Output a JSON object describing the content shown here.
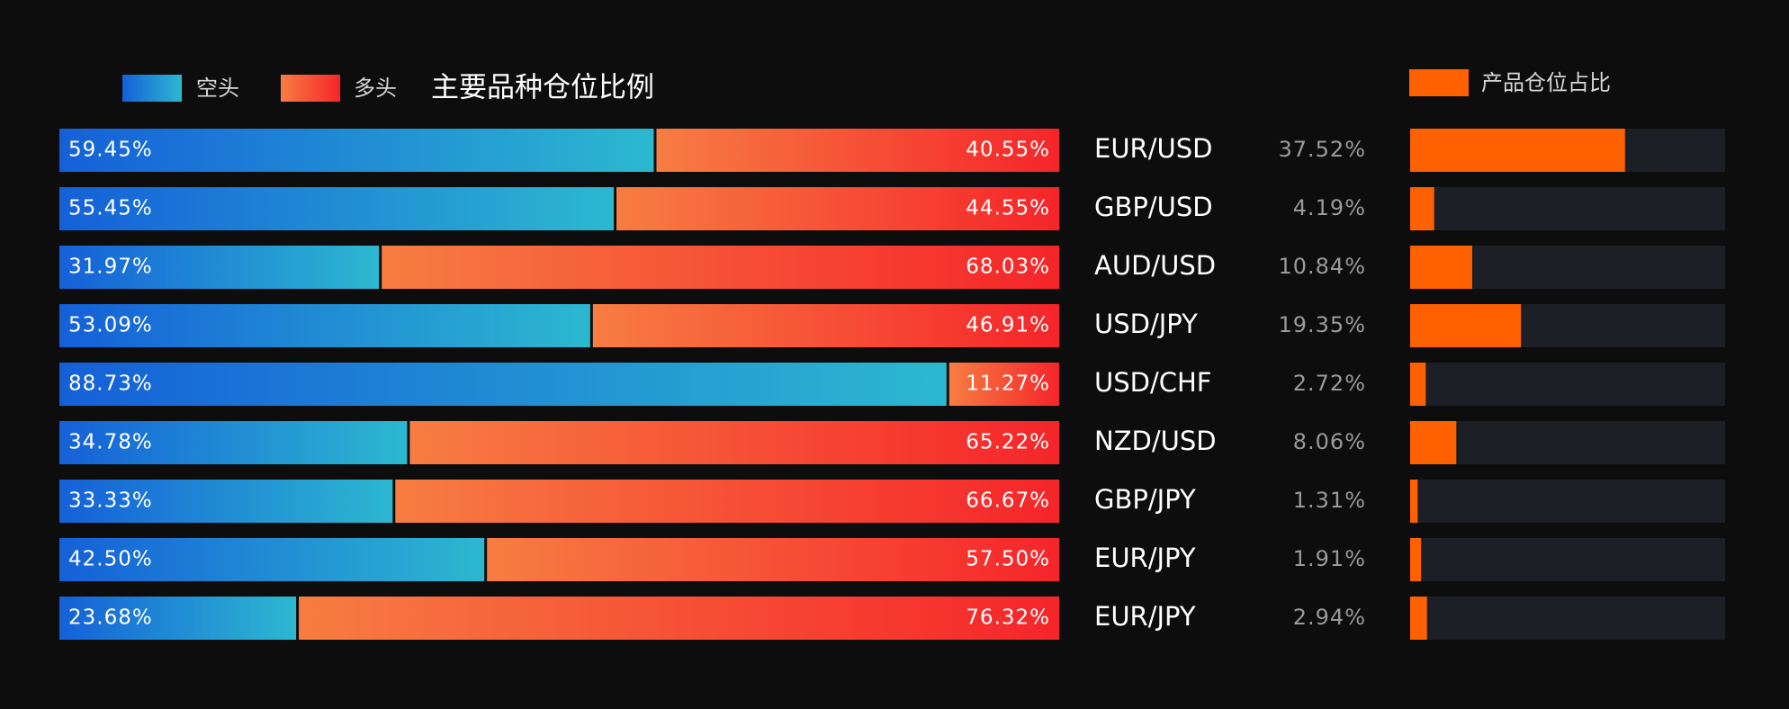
{
  "chart_data": [
    {
      "type": "stacked-bar",
      "orientation": "horizontal",
      "title": "主要品种仓位比例",
      "categories": [
        "EUR/USD",
        "GBP/USD",
        "AUD/USD",
        "USD/JPY",
        "USD/CHF",
        "NZD/USD",
        "GBP/JPY",
        "EUR/JPY",
        "EUR/JPY"
      ],
      "xlim": [
        0,
        100
      ],
      "series": [
        {
          "name": "空头",
          "color": "#1560d8",
          "gradient": [
            "#1560d8",
            "#2cb8d0"
          ],
          "values": [
            59.45,
            55.45,
            31.97,
            53.09,
            88.73,
            34.78,
            33.33,
            42.5,
            23.68
          ],
          "value_labels": [
            "59.45%",
            "55.45%",
            "31.97%",
            "53.09%",
            "88.73%",
            "34.78%",
            "33.33%",
            "42.50%",
            "23.68%"
          ]
        },
        {
          "name": "多头",
          "color": "#f6331f",
          "gradient": [
            "#f77d42",
            "#f5252a"
          ],
          "values": [
            40.55,
            44.55,
            68.03,
            46.91,
            11.27,
            65.22,
            66.67,
            57.5,
            76.32
          ],
          "value_labels": [
            "40.55%",
            "44.55%",
            "68.03%",
            "46.91%",
            "11.27%",
            "65.22%",
            "66.67%",
            "57.50%",
            "76.32%"
          ]
        }
      ]
    },
    {
      "type": "bar",
      "orientation": "horizontal",
      "name": "产品仓位占比",
      "color": "#ff6000",
      "track_color": "#1d1f26",
      "xlim": [
        0,
        55
      ],
      "values": [
        37.52,
        4.19,
        10.84,
        19.35,
        2.72,
        8.06,
        1.31,
        1.91,
        2.94
      ],
      "value_labels": [
        "37.52%",
        "4.19%",
        "10.84%",
        "19.35%",
        "2.72%",
        "8.06%",
        "1.31%",
        "1.91%",
        "2.94%"
      ]
    }
  ]
}
